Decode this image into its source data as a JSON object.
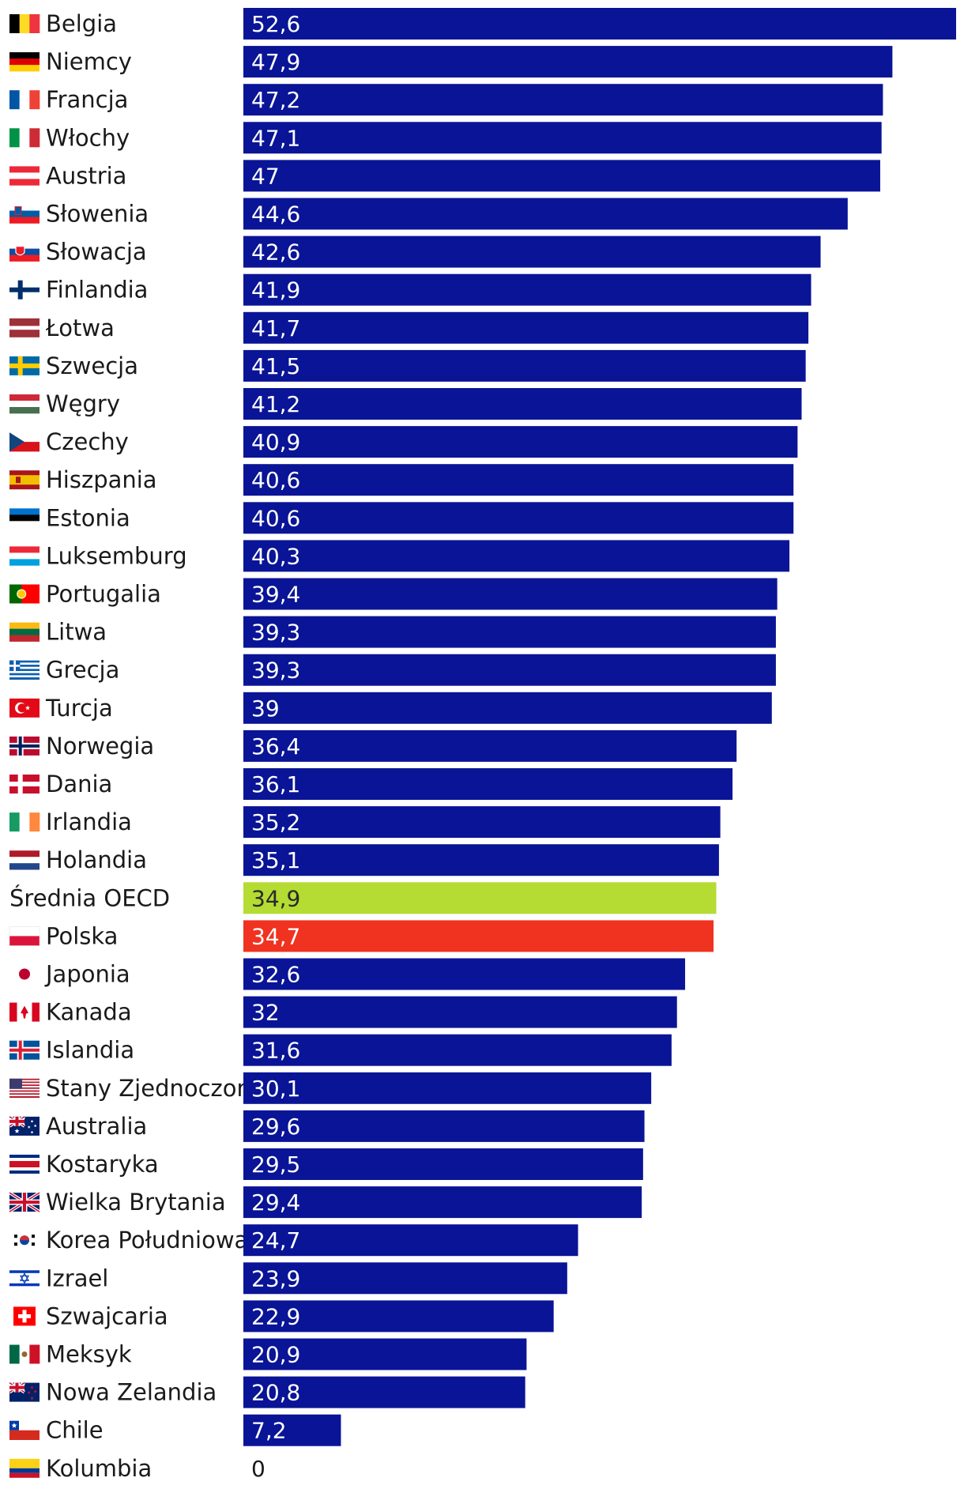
{
  "chart_data": {
    "type": "bar",
    "orientation": "horizontal",
    "title": "",
    "xlabel": "",
    "ylabel": "",
    "xlim": [
      0,
      52.6
    ],
    "grid": false,
    "legend": "none",
    "colors": {
      "default": "#0a1496",
      "oecd": "#b4dc32",
      "poland": "#f03220"
    },
    "series": [
      {
        "name": "Belgia",
        "value_label": "52,6",
        "value": 52.6,
        "flag": "be-flag",
        "highlight": "default"
      },
      {
        "name": "Niemcy",
        "value_label": "47,9",
        "value": 47.9,
        "flag": "de-flag",
        "highlight": "default"
      },
      {
        "name": "Francja",
        "value_label": "47,2",
        "value": 47.2,
        "flag": "fr-flag",
        "highlight": "default"
      },
      {
        "name": "Włochy",
        "value_label": "47,1",
        "value": 47.1,
        "flag": "it-flag",
        "highlight": "default"
      },
      {
        "name": "Austria",
        "value_label": "47",
        "value": 47.0,
        "flag": "at-flag",
        "highlight": "default"
      },
      {
        "name": "Słowenia",
        "value_label": "44,6",
        "value": 44.6,
        "flag": "si-flag",
        "highlight": "default"
      },
      {
        "name": "Słowacja",
        "value_label": "42,6",
        "value": 42.6,
        "flag": "sk-flag",
        "highlight": "default"
      },
      {
        "name": "Finlandia",
        "value_label": "41,9",
        "value": 41.9,
        "flag": "fi-flag",
        "highlight": "default"
      },
      {
        "name": "Łotwa",
        "value_label": "41,7",
        "value": 41.7,
        "flag": "lv-flag",
        "highlight": "default"
      },
      {
        "name": "Szwecja",
        "value_label": "41,5",
        "value": 41.5,
        "flag": "se-flag",
        "highlight": "default"
      },
      {
        "name": "Węgry",
        "value_label": "41,2",
        "value": 41.2,
        "flag": "hu-flag",
        "highlight": "default"
      },
      {
        "name": "Czechy",
        "value_label": "40,9",
        "value": 40.9,
        "flag": "cz-flag",
        "highlight": "default"
      },
      {
        "name": "Hiszpania",
        "value_label": "40,6",
        "value": 40.6,
        "flag": "es-flag",
        "highlight": "default"
      },
      {
        "name": "Estonia",
        "value_label": "40,6",
        "value": 40.6,
        "flag": "ee-flag",
        "highlight": "default"
      },
      {
        "name": "Luksemburg",
        "value_label": "40,3",
        "value": 40.3,
        "flag": "lu-flag",
        "highlight": "default"
      },
      {
        "name": "Portugalia",
        "value_label": "39,4",
        "value": 39.4,
        "flag": "pt-flag",
        "highlight": "default"
      },
      {
        "name": "Litwa",
        "value_label": "39,3",
        "value": 39.3,
        "flag": "lt-flag",
        "highlight": "default"
      },
      {
        "name": "Grecja",
        "value_label": "39,3",
        "value": 39.3,
        "flag": "gr-flag",
        "highlight": "default"
      },
      {
        "name": "Turcja",
        "value_label": "39",
        "value": 39.0,
        "flag": "tr-flag",
        "highlight": "default"
      },
      {
        "name": "Norwegia",
        "value_label": "36,4",
        "value": 36.4,
        "flag": "no-flag",
        "highlight": "default"
      },
      {
        "name": "Dania",
        "value_label": "36,1",
        "value": 36.1,
        "flag": "dk-flag",
        "highlight": "default"
      },
      {
        "name": "Irlandia",
        "value_label": "35,2",
        "value": 35.2,
        "flag": "ie-flag",
        "highlight": "default"
      },
      {
        "name": "Holandia",
        "value_label": "35,1",
        "value": 35.1,
        "flag": "nl-flag",
        "highlight": "default"
      },
      {
        "name": "Średnia OECD",
        "value_label": "34,9",
        "value": 34.9,
        "flag": "",
        "highlight": "oecd"
      },
      {
        "name": "Polska",
        "value_label": "34,7",
        "value": 34.7,
        "flag": "pl-flag",
        "highlight": "poland"
      },
      {
        "name": "Japonia",
        "value_label": "32,6",
        "value": 32.6,
        "flag": "jp-flag",
        "highlight": "default"
      },
      {
        "name": "Kanada",
        "value_label": "32",
        "value": 32.0,
        "flag": "ca-flag",
        "highlight": "default"
      },
      {
        "name": "Islandia",
        "value_label": "31,6",
        "value": 31.6,
        "flag": "is-flag",
        "highlight": "default"
      },
      {
        "name": "Stany Zjednoczone",
        "value_label": "30,1",
        "value": 30.1,
        "flag": "us-flag",
        "highlight": "default"
      },
      {
        "name": "Australia",
        "value_label": "29,6",
        "value": 29.6,
        "flag": "au-flag",
        "highlight": "default"
      },
      {
        "name": "Kostaryka",
        "value_label": "29,5",
        "value": 29.5,
        "flag": "cr-flag",
        "highlight": "default"
      },
      {
        "name": "Wielka Brytania",
        "value_label": "29,4",
        "value": 29.4,
        "flag": "gb-flag",
        "highlight": "default"
      },
      {
        "name": "Korea Południowa",
        "value_label": "24,7",
        "value": 24.7,
        "flag": "kr-flag",
        "highlight": "default"
      },
      {
        "name": "Izrael",
        "value_label": "23,9",
        "value": 23.9,
        "flag": "il-flag",
        "highlight": "default"
      },
      {
        "name": "Szwajcaria",
        "value_label": "22,9",
        "value": 22.9,
        "flag": "ch-flag",
        "highlight": "default"
      },
      {
        "name": "Meksyk",
        "value_label": "20,9",
        "value": 20.9,
        "flag": "mx-flag",
        "highlight": "default"
      },
      {
        "name": "Nowa Zelandia",
        "value_label": "20,8",
        "value": 20.8,
        "flag": "nz-flag",
        "highlight": "default"
      },
      {
        "name": "Chile",
        "value_label": "7,2",
        "value": 7.2,
        "flag": "cl-flag",
        "highlight": "default"
      },
      {
        "name": "Kolumbia",
        "value_label": "0",
        "value": 0,
        "flag": "co-flag",
        "highlight": "default"
      }
    ]
  }
}
